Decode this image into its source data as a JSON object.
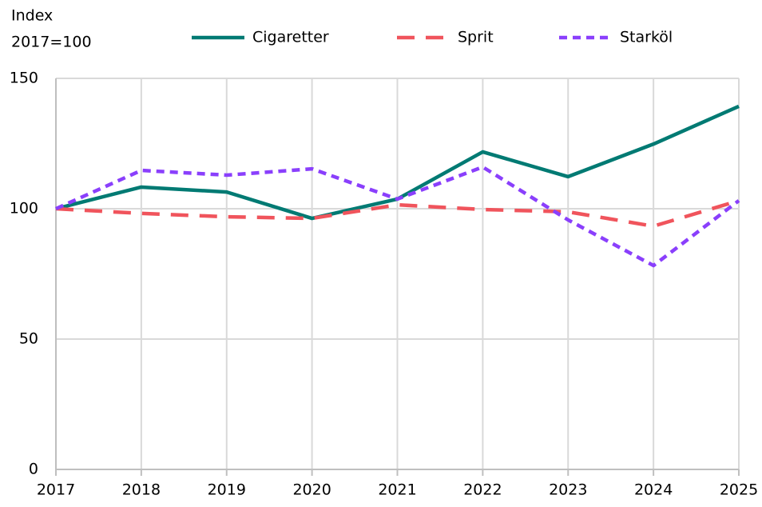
{
  "chart_data": {
    "type": "line",
    "ylabel": [
      "Index",
      "2017=100"
    ],
    "categories": [
      "2017",
      "2018",
      "2019",
      "2020",
      "2021",
      "2022",
      "2023",
      "2024",
      "2025"
    ],
    "series": [
      {
        "name": "Cigaretter",
        "color": "#007a73",
        "dash": "solid",
        "values": [
          100,
          108.3,
          106.4,
          96.3,
          103.7,
          121.8,
          112.3,
          124.8,
          139.3
        ]
      },
      {
        "name": "Sprit",
        "color": "#f0545c",
        "dash": "dashed",
        "values": [
          100,
          98.2,
          96.9,
          96.3,
          101.5,
          99.7,
          98.8,
          93.3,
          103.1
        ]
      },
      {
        "name": "Starköl",
        "color": "#8a3ffc",
        "dash": "dotted",
        "values": [
          100,
          114.7,
          112.9,
          115.3,
          103.7,
          116.0,
          95.7,
          78.2,
          103.1
        ]
      }
    ],
    "ylim": [
      0,
      150
    ],
    "yticks": [
      0,
      50,
      100,
      150
    ],
    "grid": true,
    "legend": "top"
  }
}
